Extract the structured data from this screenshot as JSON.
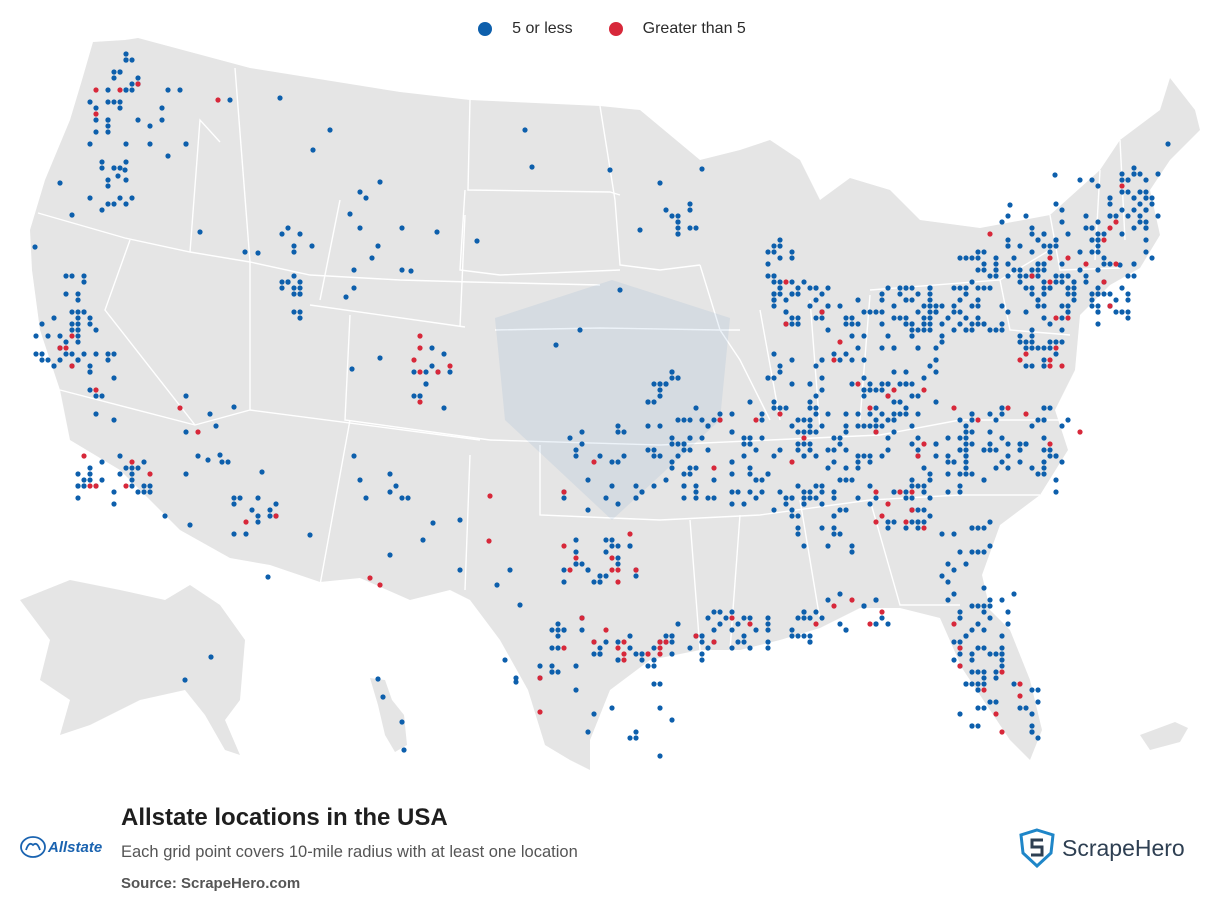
{
  "legend": {
    "items": [
      {
        "label": "5 or less",
        "color": "#0d5fac"
      },
      {
        "label": "Greater than 5",
        "color": "#d7283a"
      }
    ]
  },
  "title": "Allstate locations in the USA",
  "subtitle": "Each grid point covers 10-mile radius with at least one location",
  "source": "Source: ScrapeHero.com",
  "brand_logo": {
    "text": "Allstate",
    "icon": "allstate-hands-icon"
  },
  "scrapehero_logo": {
    "text": "ScrapeHero",
    "icon": "scrapehero-shield-icon"
  },
  "colors": {
    "land": "#e5e5e5",
    "border": "#ffffff",
    "low": "#0d5fac",
    "high": "#d7283a"
  }
}
